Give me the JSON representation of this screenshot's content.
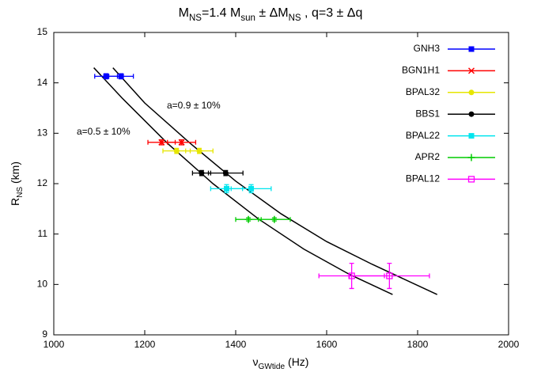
{
  "chart_data": {
    "type": "scatter",
    "title": [
      "M",
      "NS",
      "=1.4 M",
      "sun",
      " ± ΔM",
      "NS",
      " ,     q=3 ± Δq"
    ],
    "x_label": [
      "ν",
      "GWtide",
      " (Hz)"
    ],
    "y_label": [
      "R",
      "NS",
      " (km)"
    ],
    "xlim": [
      1000,
      2000
    ],
    "ylim": [
      9,
      15
    ],
    "xticks": [
      1000,
      1200,
      1400,
      1600,
      1800,
      2000
    ],
    "yticks": [
      9,
      10,
      11,
      12,
      13,
      14,
      15
    ],
    "legend": "top-right",
    "series": [
      {
        "name": "GNH3",
        "color": "#0000ff",
        "marker": "star",
        "x": [
          1115,
          1148
        ],
        "values": [
          14.13,
          14.13
        ],
        "xerr": [
          25,
          27
        ],
        "yerr": [
          0.05,
          0.05
        ]
      },
      {
        "name": "BGN1H1",
        "color": "#ff0000",
        "marker": "cross",
        "x": [
          1237,
          1281
        ],
        "values": [
          12.82,
          12.82
        ],
        "xerr": [
          30,
          31
        ],
        "yerr": [
          0.05,
          0.05
        ]
      },
      {
        "name": "BPAL32",
        "color": "#e6e600",
        "marker": "circle",
        "x": [
          1270,
          1320
        ],
        "values": [
          12.65,
          12.65
        ],
        "xerr": [
          30,
          30
        ],
        "yerr": [
          0.05,
          0.05
        ]
      },
      {
        "name": "BBS1",
        "color": "#000000",
        "marker": "circle",
        "x": [
          1325,
          1378
        ],
        "values": [
          12.21,
          12.21
        ],
        "xerr": [
          20,
          38
        ],
        "yerr": [
          0.05,
          0.05
        ]
      },
      {
        "name": "BPAL22",
        "color": "#00e5ee",
        "marker": "square",
        "x": [
          1380,
          1434
        ],
        "values": [
          11.9,
          11.9
        ],
        "xerr": [
          35,
          44
        ],
        "yerr": [
          0.08,
          0.08
        ]
      },
      {
        "name": "APR2",
        "color": "#00cc00",
        "marker": "plus",
        "x": [
          1428,
          1485
        ],
        "values": [
          11.29,
          11.29
        ],
        "xerr": [
          28,
          35
        ],
        "yerr": [
          0.03,
          0.03
        ]
      },
      {
        "name": "BPAL12",
        "color": "#ff00ff",
        "marker": "open-square",
        "x": [
          1655,
          1738
        ],
        "values": [
          10.17,
          10.17
        ],
        "xerr": [
          72,
          88
        ],
        "yerr": [
          0.25,
          0.25
        ]
      }
    ],
    "curves": [
      {
        "label": "a=0.5 ± 10%",
        "color": "#000000",
        "x": [
          1088,
          1150,
          1250,
          1350,
          1450,
          1550,
          1650,
          1745
        ],
        "values": [
          14.3,
          13.7,
          12.8,
          12.0,
          11.3,
          10.7,
          10.2,
          9.8
        ]
      },
      {
        "label": "a=0.9 ± 10%",
        "color": "#000000",
        "x": [
          1130,
          1200,
          1300,
          1400,
          1500,
          1600,
          1700,
          1843
        ],
        "values": [
          14.3,
          13.6,
          12.8,
          12.05,
          11.4,
          10.85,
          10.4,
          9.8
        ]
      }
    ]
  }
}
